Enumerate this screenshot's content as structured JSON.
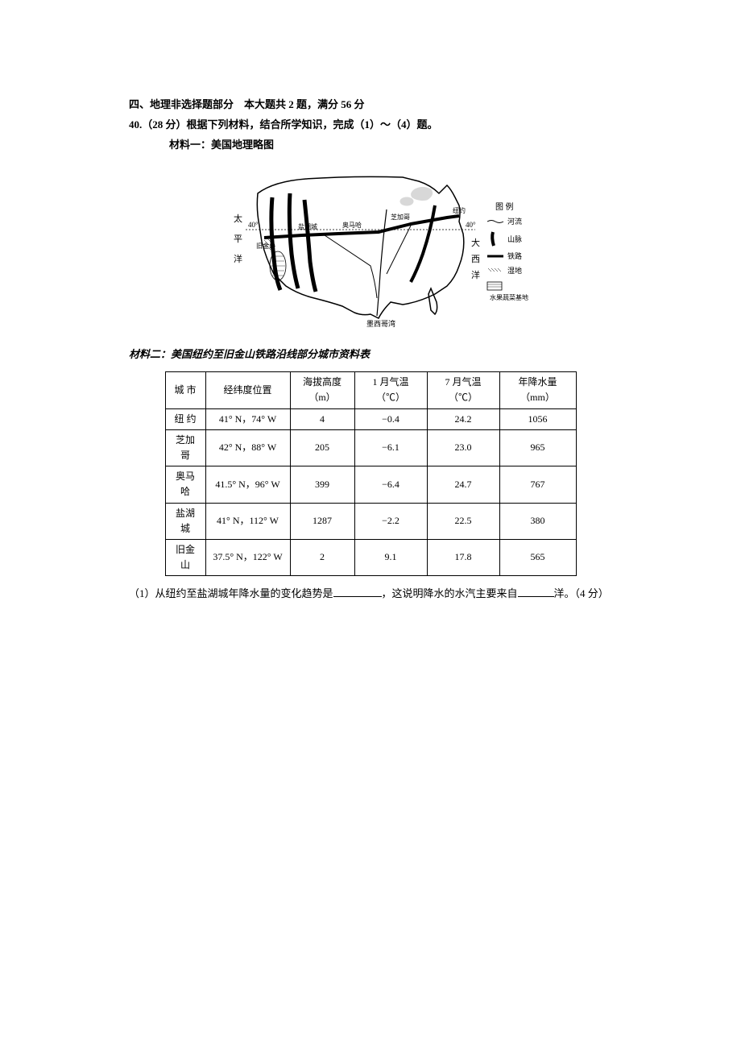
{
  "section": {
    "title": "四、地理非选择题部分　本大题共 2 题，满分 56 分"
  },
  "question40": {
    "header": "40.（28 分）根据下列材料，结合所学知识，完成（1）～（4）题。",
    "material1_label": "材料一：美国地理略图",
    "material2_label": "材料二：美国纽约至旧金山铁路沿线部分城市资料表"
  },
  "map": {
    "labels": {
      "pacific_left_top": "太",
      "pacific_left_mid": "平",
      "pacific_left_bot": "洋",
      "atlantic_right_top": "大",
      "atlantic_right_mid": "西",
      "atlantic_right_bot": "洋",
      "sf": "旧金山",
      "slc": "盐湖城",
      "omaha": "奥马哈",
      "chicago": "芝加哥",
      "ny": "纽约",
      "gulf": "墨西哥湾",
      "lat40": "40°",
      "legend_title": "图 例",
      "legend_river": "河流",
      "legend_mountain": "山脉",
      "legend_rail": "铁路",
      "legend_swamp": "湿地",
      "legend_fruit": "水果蔬菜基地"
    },
    "colors": {
      "stroke": "#000000",
      "fill_none": "none"
    }
  },
  "table": {
    "headers": [
      "城 市",
      "经纬度位置",
      "海拔高度（m）",
      "1 月气温（℃）",
      "7 月气温（℃）",
      "年降水量（mm）"
    ],
    "rows": [
      [
        "纽 约",
        "41° N，74° W",
        "4",
        "−0.4",
        "24.2",
        "1056"
      ],
      [
        "芝加哥",
        "42° N，88° W",
        "205",
        "−6.1",
        "23.0",
        "965"
      ],
      [
        "奥马哈",
        "41.5° N，96° W",
        "399",
        "−6.4",
        "24.7",
        "767"
      ],
      [
        "盐湖城",
        "41° N，112° W",
        "1287",
        "−2.2",
        "22.5",
        "380"
      ],
      [
        "旧金山",
        "37.5° N，122° W",
        "2",
        "9.1",
        "17.8",
        "565"
      ]
    ],
    "col_widths": [
      "50px",
      "105px",
      "80px",
      "90px",
      "90px",
      "95px"
    ]
  },
  "subq1": {
    "prefix": "（1）从纽约至盐湖城年降水量的变化趋势是",
    "mid": "，这说明降水的水汽主要来自",
    "suffix": "洋。（4 分）"
  }
}
